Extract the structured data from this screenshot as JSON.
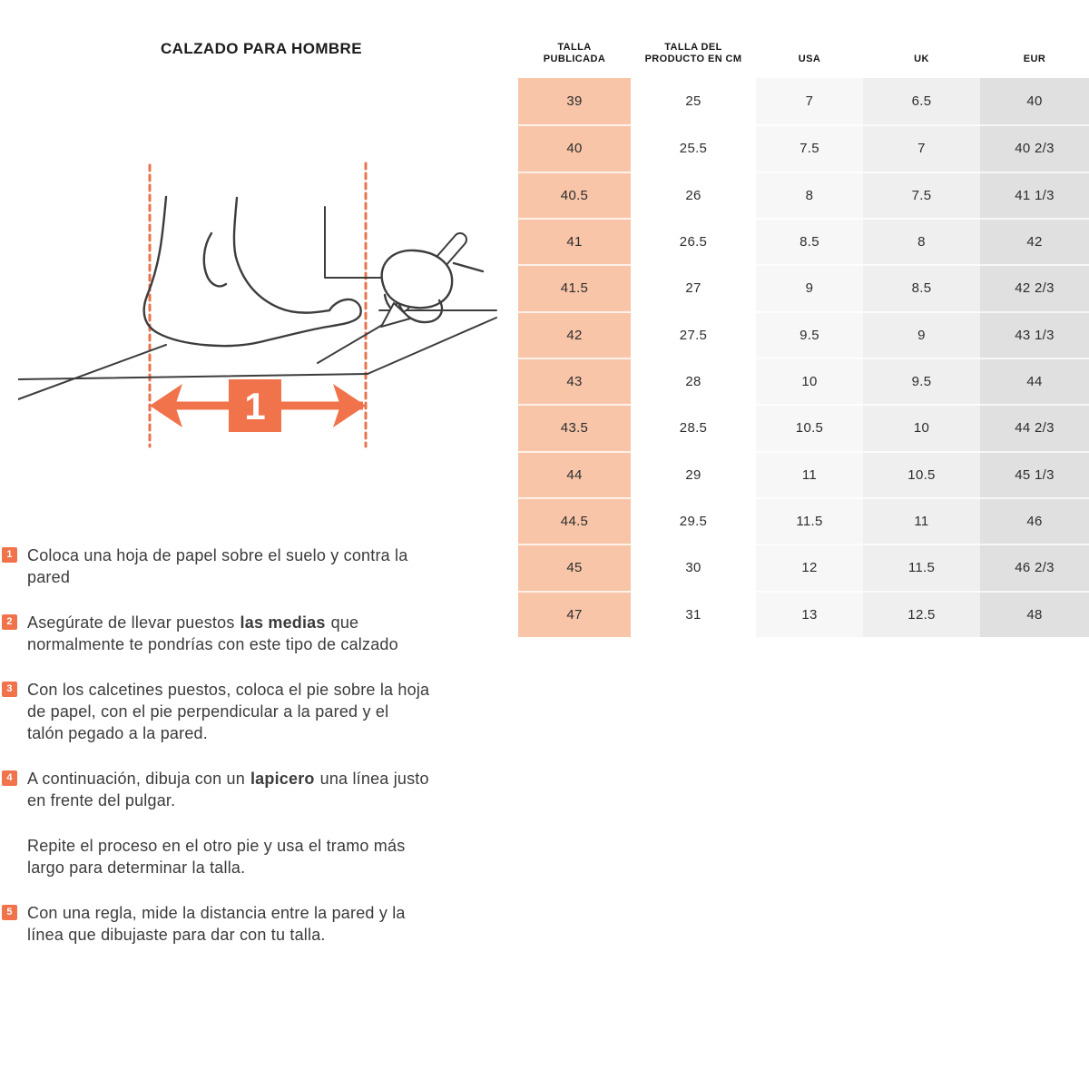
{
  "page": {
    "title": "CALZADO PARA HOMBRE"
  },
  "colors": {
    "accent_orange": "#F0734B",
    "dashed_line_orange": "#E8744E",
    "talla_column_bg": "#F8C5A8",
    "usa_column_bg": "#F7F7F7",
    "uk_column_bg": "#EFEFEF",
    "eur_column_bg": "#E0E0E0",
    "line_art": "#3d3d3d"
  },
  "illustration": {
    "arrow_label": "1"
  },
  "instructions": [
    {
      "num": "1",
      "lines": [
        {
          "pre": "Coloca una hoja de papel sobre el suelo y contra la",
          "bold": "",
          "post": ""
        },
        {
          "pre": "pared",
          "bold": "",
          "post": ""
        }
      ]
    },
    {
      "num": "2",
      "lines": [
        {
          "pre": "Asegúrate de llevar puestos",
          "bold": "las medias",
          "post": "que"
        },
        {
          "pre": "normalmente te pondrías con este tipo de calzado",
          "bold": "",
          "post": ""
        }
      ]
    },
    {
      "num": "3",
      "lines": [
        {
          "pre": "Con los calcetines puestos, coloca el pie sobre la hoja",
          "bold": "",
          "post": ""
        },
        {
          "pre": "de papel, con el pie perpendicular a la pared y el",
          "bold": "",
          "post": ""
        },
        {
          "pre": "talón pegado a la pared.",
          "bold": "",
          "post": ""
        }
      ]
    },
    {
      "num": "4",
      "lines": [
        {
          "pre": "A continuación, dibuja con un",
          "bold": "lapicero",
          "post": "una línea justo"
        },
        {
          "pre": "en frente del pulgar.",
          "bold": "",
          "post": ""
        }
      ]
    },
    {
      "num": "",
      "lines": [
        {
          "pre": "Repite el proceso en el otro pie y usa el tramo más",
          "bold": "",
          "post": ""
        },
        {
          "pre": "largo para determinar la talla.",
          "bold": "",
          "post": ""
        }
      ]
    },
    {
      "num": "5",
      "lines": [
        {
          "pre": "Con una regla, mide la distancia entre la pared y la",
          "bold": "",
          "post": ""
        },
        {
          "pre": "línea que dibujaste para dar con tu talla.",
          "bold": "",
          "post": ""
        }
      ]
    }
  ],
  "table": {
    "headers": [
      [
        "TALLA",
        "PUBLICADA"
      ],
      [
        "TALLA DEL",
        "PRODUCTO EN CM"
      ],
      [
        "USA"
      ],
      [
        "UK"
      ],
      [
        "EUR"
      ]
    ],
    "rows": [
      [
        "39",
        "25",
        "7",
        "6.5",
        "40"
      ],
      [
        "40",
        "25.5",
        "7.5",
        "7",
        "40 2/3"
      ],
      [
        "40.5",
        "26",
        "8",
        "7.5",
        "41 1/3"
      ],
      [
        "41",
        "26.5",
        "8.5",
        "8",
        "42"
      ],
      [
        "41.5",
        "27",
        "9",
        "8.5",
        "42 2/3"
      ],
      [
        "42",
        "27.5",
        "9.5",
        "9",
        "43 1/3"
      ],
      [
        "43",
        "28",
        "10",
        "9.5",
        "44"
      ],
      [
        "43.5",
        "28.5",
        "10.5",
        "10",
        "44 2/3"
      ],
      [
        "44",
        "29",
        "11",
        "10.5",
        "45 1/3"
      ],
      [
        "44.5",
        "29.5",
        "11.5",
        "11",
        "46"
      ],
      [
        "45",
        "30",
        "12",
        "11.5",
        "46 2/3"
      ],
      [
        "47",
        "31",
        "13",
        "12.5",
        "48"
      ]
    ]
  }
}
